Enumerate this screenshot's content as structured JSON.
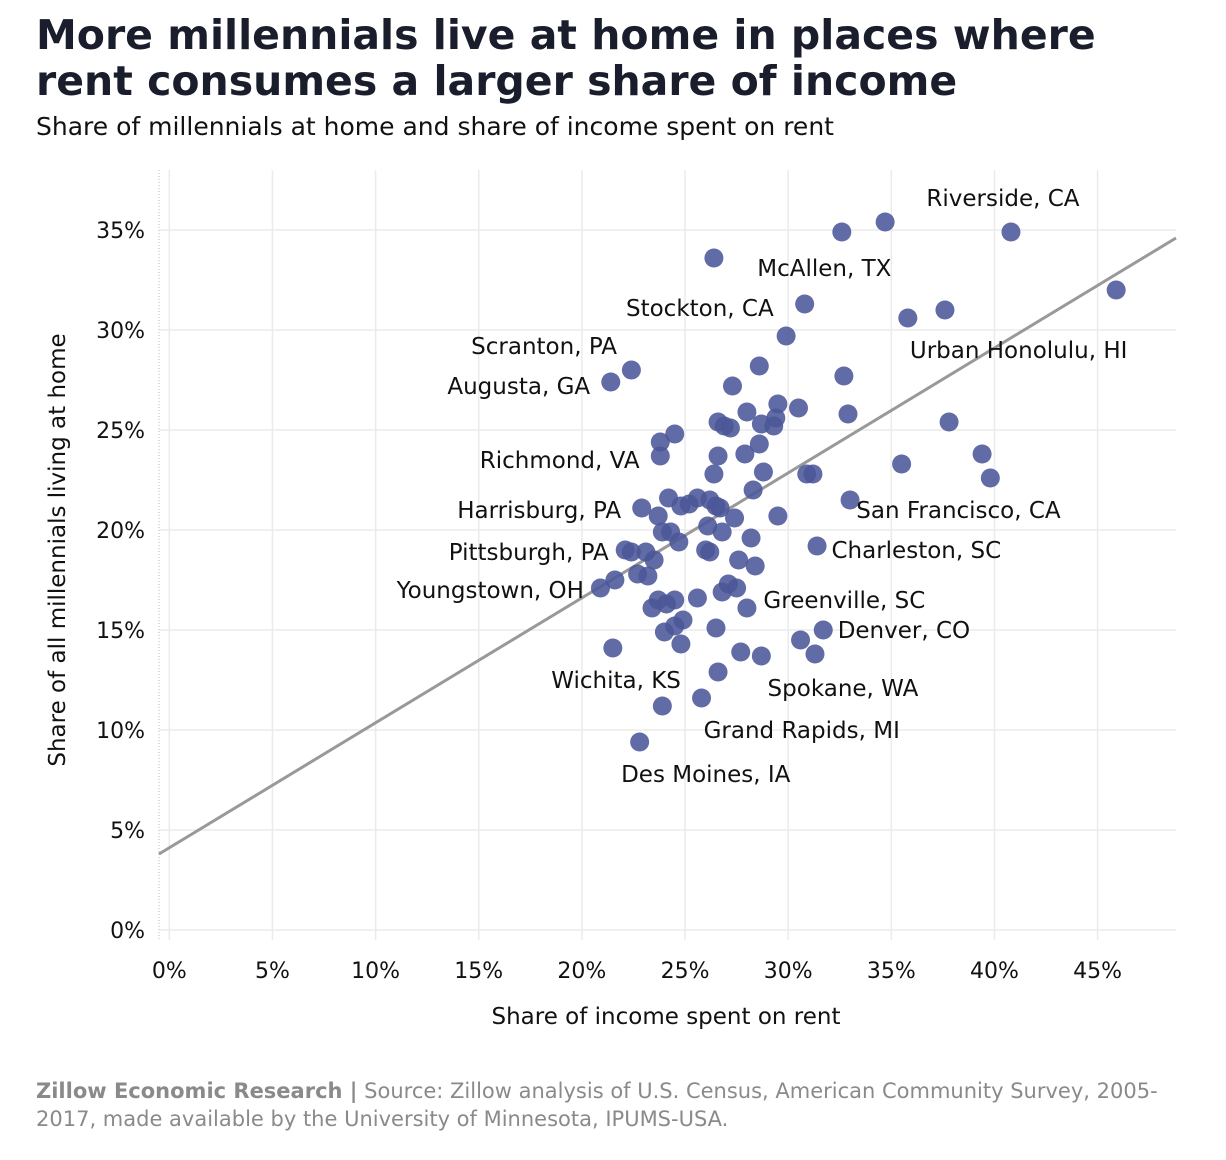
{
  "title": "More millennials live at home in places where rent consumes a larger share of income",
  "subtitle": "Share of millennials at home and share of income spent on rent",
  "footer": {
    "org": "Zillow Economic Research |",
    "source": "Source: Zillow analysis of U.S. Census, American Community Survey, 2005-2017, made available by the University of Minnesota, IPUMS-USA."
  },
  "colors": {
    "point": "#4b5699",
    "trend": "#999999",
    "grid": "#ebebeb"
  },
  "chart_data": {
    "type": "scatter",
    "xlabel": "Share of income spent on rent",
    "ylabel": "Share of all millennials living at home",
    "xlim": [
      -0.5,
      48.8
    ],
    "ylim": [
      -0.5,
      38
    ],
    "x_ticks": [
      0,
      5,
      10,
      15,
      20,
      25,
      30,
      35,
      40,
      45
    ],
    "x_tick_labels": [
      "0%",
      "5%",
      "10%",
      "15%",
      "20%",
      "25%",
      "30%",
      "35%",
      "40%",
      "45%"
    ],
    "y_ticks": [
      0,
      5,
      10,
      15,
      20,
      25,
      30,
      35
    ],
    "y_tick_labels": [
      "0%",
      "5%",
      "10%",
      "15%",
      "20%",
      "25%",
      "30%",
      "35%"
    ],
    "grid": true,
    "trend_line": {
      "x": [
        -0.5,
        48.8
      ],
      "y": [
        3.8,
        34.6
      ]
    },
    "points": [
      [
        34.7,
        35.4
      ],
      [
        32.6,
        34.9
      ],
      [
        40.8,
        34.9
      ],
      [
        26.4,
        33.6
      ],
      [
        45.9,
        32.0
      ],
      [
        30.8,
        31.3
      ],
      [
        37.6,
        31.0
      ],
      [
        35.8,
        30.6
      ],
      [
        29.9,
        29.7
      ],
      [
        22.4,
        28.0
      ],
      [
        28.6,
        28.2
      ],
      [
        21.4,
        27.4
      ],
      [
        32.7,
        27.7
      ],
      [
        27.3,
        27.2
      ],
      [
        29.5,
        26.3
      ],
      [
        30.5,
        26.1
      ],
      [
        28.0,
        25.9
      ],
      [
        32.9,
        25.8
      ],
      [
        29.4,
        25.6
      ],
      [
        26.6,
        25.4
      ],
      [
        26.9,
        25.2
      ],
      [
        28.7,
        25.3
      ],
      [
        27.2,
        25.1
      ],
      [
        29.3,
        25.2
      ],
      [
        37.8,
        25.4
      ],
      [
        24.5,
        24.8
      ],
      [
        23.8,
        24.4
      ],
      [
        28.6,
        24.3
      ],
      [
        23.8,
        23.7
      ],
      [
        26.6,
        23.7
      ],
      [
        27.9,
        23.8
      ],
      [
        39.4,
        23.8
      ],
      [
        35.5,
        23.3
      ],
      [
        28.8,
        22.9
      ],
      [
        30.9,
        22.8
      ],
      [
        31.2,
        22.8
      ],
      [
        26.4,
        22.8
      ],
      [
        39.8,
        22.6
      ],
      [
        28.3,
        22.0
      ],
      [
        24.2,
        21.6
      ],
      [
        25.6,
        21.6
      ],
      [
        26.2,
        21.5
      ],
      [
        33.0,
        21.5
      ],
      [
        24.8,
        21.2
      ],
      [
        25.2,
        21.3
      ],
      [
        26.7,
        21.1
      ],
      [
        26.5,
        21.2
      ],
      [
        22.9,
        21.1
      ],
      [
        23.7,
        20.7
      ],
      [
        27.4,
        20.6
      ],
      [
        29.5,
        20.7
      ],
      [
        26.1,
        20.2
      ],
      [
        23.9,
        19.9
      ],
      [
        24.3,
        19.9
      ],
      [
        26.8,
        19.9
      ],
      [
        28.2,
        19.6
      ],
      [
        24.7,
        19.4
      ],
      [
        31.4,
        19.2
      ],
      [
        22.1,
        19.0
      ],
      [
        22.4,
        18.9
      ],
      [
        26.0,
        19.0
      ],
      [
        26.2,
        18.9
      ],
      [
        23.1,
        18.9
      ],
      [
        23.5,
        18.5
      ],
      [
        27.6,
        18.5
      ],
      [
        28.4,
        18.2
      ],
      [
        22.7,
        17.8
      ],
      [
        23.2,
        17.7
      ],
      [
        21.6,
        17.5
      ],
      [
        20.9,
        17.1
      ],
      [
        27.1,
        17.3
      ],
      [
        27.5,
        17.1
      ],
      [
        26.8,
        16.9
      ],
      [
        23.7,
        16.5
      ],
      [
        24.5,
        16.5
      ],
      [
        25.6,
        16.6
      ],
      [
        23.4,
        16.1
      ],
      [
        24.1,
        16.3
      ],
      [
        28.0,
        16.1
      ],
      [
        24.9,
        15.5
      ],
      [
        24.5,
        15.2
      ],
      [
        26.5,
        15.1
      ],
      [
        31.7,
        15.0
      ],
      [
        24.0,
        14.9
      ],
      [
        30.6,
        14.5
      ],
      [
        24.8,
        14.3
      ],
      [
        21.5,
        14.1
      ],
      [
        27.7,
        13.9
      ],
      [
        28.7,
        13.7
      ],
      [
        31.3,
        13.8
      ],
      [
        26.6,
        12.9
      ],
      [
        25.8,
        11.6
      ],
      [
        23.9,
        11.2
      ],
      [
        22.8,
        9.4
      ]
    ],
    "annotations": [
      {
        "text": "Riverside, CA",
        "x": 36.7,
        "y": 36.2,
        "anchor": "start"
      },
      {
        "text": "McAllen, TX",
        "x": 28.5,
        "y": 32.7,
        "anchor": "start"
      },
      {
        "text": "Stockton, CA",
        "x": 29.3,
        "y": 30.7,
        "anchor": "end"
      },
      {
        "text": "Urban Honolulu, HI",
        "x": 35.9,
        "y": 28.6,
        "anchor": "start"
      },
      {
        "text": "Scranton, PA",
        "x": 21.7,
        "y": 28.8,
        "anchor": "end"
      },
      {
        "text": "Augusta, GA",
        "x": 20.4,
        "y": 26.8,
        "anchor": "end"
      },
      {
        "text": "Richmond, VA",
        "x": 22.8,
        "y": 23.1,
        "anchor": "end"
      },
      {
        "text": "Harrisburg, PA",
        "x": 21.9,
        "y": 20.6,
        "anchor": "end"
      },
      {
        "text": "San Francisco, CA",
        "x": 33.3,
        "y": 20.6,
        "anchor": "start"
      },
      {
        "text": "Pittsburgh, PA",
        "x": 21.3,
        "y": 18.5,
        "anchor": "end"
      },
      {
        "text": "Charleston, SC",
        "x": 32.1,
        "y": 18.6,
        "anchor": "start"
      },
      {
        "text": "Youngstown, OH",
        "x": 20.1,
        "y": 16.6,
        "anchor": "end"
      },
      {
        "text": "Greenville, SC",
        "x": 28.8,
        "y": 16.1,
        "anchor": "start"
      },
      {
        "text": "Denver, CO",
        "x": 32.4,
        "y": 14.6,
        "anchor": "start"
      },
      {
        "text": "Wichita, KS",
        "x": 24.8,
        "y": 12.1,
        "anchor": "end"
      },
      {
        "text": "Spokane, WA",
        "x": 29.0,
        "y": 11.7,
        "anchor": "start"
      },
      {
        "text": "Grand Rapids, MI",
        "x": 25.9,
        "y": 9.6,
        "anchor": "start"
      },
      {
        "text": "Des Moines, IA",
        "x": 21.9,
        "y": 7.4,
        "anchor": "start"
      }
    ]
  }
}
